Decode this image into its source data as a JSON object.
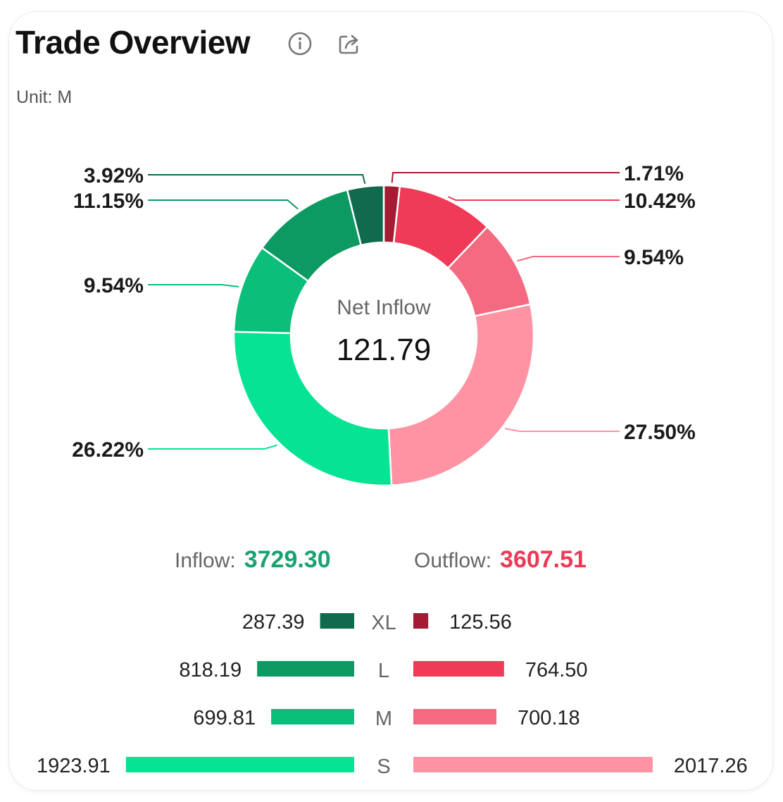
{
  "header": {
    "title": "Trade Overview",
    "info_icon": "info-icon",
    "share_icon": "share-icon",
    "unit": "Unit: M"
  },
  "center": {
    "label": "Net Inflow",
    "value": "121.79"
  },
  "summary": {
    "inflow_label": "Inflow:",
    "inflow_value": "3729.30",
    "outflow_label": "Outflow:",
    "outflow_value": "3607.51"
  },
  "colors": {
    "inflow_accent": "#1aa36f",
    "outflow_accent": "#ec3a57"
  },
  "chart_data": [
    {
      "type": "pie",
      "variant": "donut",
      "slices": [
        {
          "label": "Outflow XL",
          "value": 1.71,
          "text": "1.71%",
          "color": "#a31c33"
        },
        {
          "label": "Outflow L",
          "value": 10.42,
          "text": "10.42%",
          "color": "#ef3a58"
        },
        {
          "label": "Outflow M",
          "value": 9.54,
          "text": "9.54%",
          "color": "#f46a80"
        },
        {
          "label": "Outflow S",
          "value": 27.5,
          "text": "27.50%",
          "color": "#fd93a3"
        },
        {
          "label": "Inflow S",
          "value": 26.22,
          "text": "26.22%",
          "color": "#05e393"
        },
        {
          "label": "Inflow M",
          "value": 9.54,
          "text": "9.54%",
          "color": "#0bbf7b"
        },
        {
          "label": "Inflow L",
          "value": 11.15,
          "text": "11.15%",
          "color": "#0c9a62"
        },
        {
          "label": "Inflow XL",
          "value": 3.92,
          "text": "3.92%",
          "color": "#106b4e"
        }
      ]
    },
    {
      "type": "bar",
      "orientation": "horizontal-butterfly",
      "categories": [
        "XL",
        "L",
        "M",
        "S"
      ],
      "series": [
        {
          "name": "Inflow",
          "values": [
            287.39,
            818.19,
            699.81,
            1923.91
          ],
          "labels": [
            "287.39",
            "818.19",
            "699.81",
            "1923.91"
          ],
          "colors": [
            "#106b4e",
            "#0c9a62",
            "#0bbf7b",
            "#05e393"
          ]
        },
        {
          "name": "Outflow",
          "values": [
            125.56,
            764.5,
            700.18,
            2017.26
          ],
          "labels": [
            "125.56",
            "764.50",
            "700.18",
            "2017.26"
          ],
          "colors": [
            "#a31c33",
            "#ef3a58",
            "#f46a80",
            "#fd93a3"
          ]
        }
      ]
    }
  ]
}
